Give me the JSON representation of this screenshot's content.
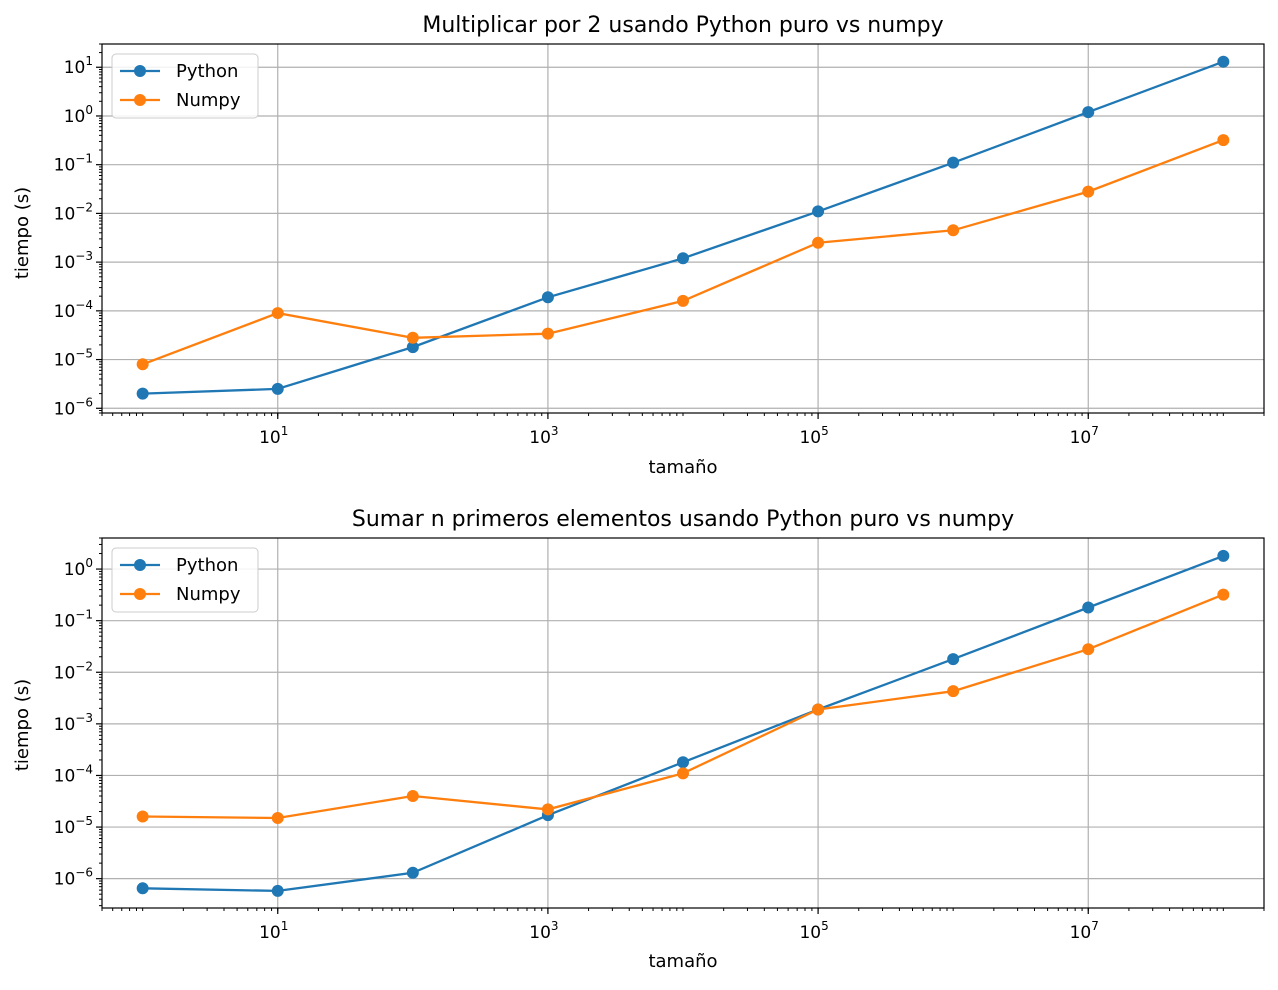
{
  "chart_data": [
    {
      "type": "line",
      "title": "Multiplicar por 2 usando Python puro vs numpy",
      "xlabel": "tamaño",
      "ylabel": "tiempo (s)",
      "xscale": "log",
      "yscale": "log",
      "xlim": [
        0.5,
        200000000
      ],
      "ylim": [
        8e-07,
        30
      ],
      "x": [
        1,
        10,
        100,
        1000,
        10000,
        100000,
        1000000,
        10000000,
        100000000
      ],
      "x_ticks": [
        10,
        1000,
        100000,
        10000000
      ],
      "x_tick_labels": [
        {
          "base": "10",
          "exp": "1"
        },
        {
          "base": "10",
          "exp": "3"
        },
        {
          "base": "10",
          "exp": "5"
        },
        {
          "base": "10",
          "exp": "7"
        }
      ],
      "y_ticks": [
        1e-06,
        1e-05,
        0.0001,
        0.001,
        0.01,
        0.1,
        1,
        10
      ],
      "y_tick_labels": [
        {
          "base": "10",
          "exp": "−6"
        },
        {
          "base": "10",
          "exp": "−5"
        },
        {
          "base": "10",
          "exp": "−4"
        },
        {
          "base": "10",
          "exp": "−3"
        },
        {
          "base": "10",
          "exp": "−2"
        },
        {
          "base": "10",
          "exp": "−1"
        },
        {
          "base": "10",
          "exp": "0"
        },
        {
          "base": "10",
          "exp": "1"
        }
      ],
      "grid": true,
      "legend_position": "top-left",
      "series": [
        {
          "name": "Python",
          "color": "#1f77b4",
          "values": [
            2e-06,
            2.5e-06,
            1.8e-05,
            0.00019,
            0.0012,
            0.011,
            0.11,
            1.2,
            13
          ]
        },
        {
          "name": "Numpy",
          "color": "#ff7f0e",
          "values": [
            8e-06,
            9e-05,
            2.8e-05,
            3.4e-05,
            0.00016,
            0.0025,
            0.0045,
            0.028,
            0.32
          ]
        }
      ]
    },
    {
      "type": "line",
      "title": "Sumar n primeros elementos usando Python puro vs numpy",
      "xlabel": "tamaño",
      "ylabel": "tiempo (s)",
      "xscale": "log",
      "yscale": "log",
      "xlim": [
        0.5,
        200000000
      ],
      "ylim": [
        2.7e-07,
        4
      ],
      "x": [
        1,
        10,
        100,
        1000,
        10000,
        100000,
        1000000,
        10000000,
        100000000
      ],
      "x_ticks": [
        10,
        1000,
        100000,
        10000000
      ],
      "x_tick_labels": [
        {
          "base": "10",
          "exp": "1"
        },
        {
          "base": "10",
          "exp": "3"
        },
        {
          "base": "10",
          "exp": "5"
        },
        {
          "base": "10",
          "exp": "7"
        }
      ],
      "y_ticks": [
        1e-06,
        1e-05,
        0.0001,
        0.001,
        0.01,
        0.1,
        1
      ],
      "y_tick_labels": [
        {
          "base": "10",
          "exp": "−6"
        },
        {
          "base": "10",
          "exp": "−5"
        },
        {
          "base": "10",
          "exp": "−4"
        },
        {
          "base": "10",
          "exp": "−3"
        },
        {
          "base": "10",
          "exp": "−2"
        },
        {
          "base": "10",
          "exp": "−1"
        },
        {
          "base": "10",
          "exp": "0"
        }
      ],
      "grid": true,
      "legend_position": "top-left",
      "series": [
        {
          "name": "Python",
          "color": "#1f77b4",
          "values": [
            6.5e-07,
            5.8e-07,
            1.3e-06,
            1.7e-05,
            0.00018,
            0.0019,
            0.018,
            0.18,
            1.8
          ]
        },
        {
          "name": "Numpy",
          "color": "#ff7f0e",
          "values": [
            1.6e-05,
            1.5e-05,
            4e-05,
            2.2e-05,
            0.00011,
            0.0019,
            0.0043,
            0.028,
            0.32
          ]
        }
      ]
    }
  ]
}
